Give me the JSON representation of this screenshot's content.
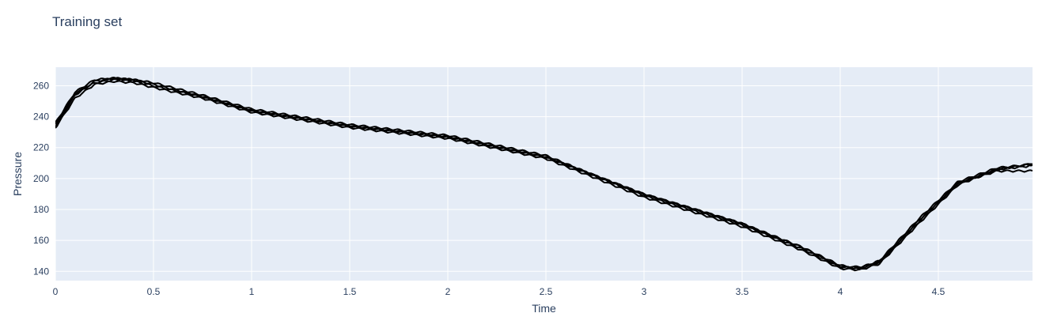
{
  "chart_data": {
    "type": "line",
    "title": "Training set",
    "xlabel": "Time",
    "ylabel": "Pressure",
    "xlim": [
      0,
      4.98
    ],
    "ylim": [
      134,
      272
    ],
    "x_ticks": [
      0,
      0.5,
      1,
      1.5,
      2,
      2.5,
      3,
      3.5,
      4,
      4.5
    ],
    "x_tick_labels": [
      "0",
      "0.5",
      "1",
      "1.5",
      "2",
      "2.5",
      "3",
      "3.5",
      "4",
      "4.5"
    ],
    "y_ticks": [
      140,
      160,
      180,
      200,
      220,
      240,
      260
    ],
    "y_tick_labels": [
      "140",
      "160",
      "180",
      "200",
      "220",
      "240",
      "260"
    ],
    "grid": true,
    "plot_background": "#e5ecf6",
    "line_color": "#000000",
    "series": [
      {
        "x": [
          0,
          0.1,
          0.2,
          0.3,
          0.4,
          0.5,
          0.75,
          1.0,
          1.5,
          2.0,
          2.5,
          3.0,
          3.5,
          3.8,
          4.0,
          4.1,
          4.2,
          4.4,
          4.6,
          4.8,
          4.95,
          4.98
        ],
        "y": [
          234,
          254,
          263,
          265,
          264,
          261,
          253,
          244,
          234,
          227,
          214,
          190,
          171,
          155,
          143,
          142,
          146,
          173,
          197,
          205,
          205,
          205
        ]
      },
      {
        "x": [
          0,
          0.1,
          0.2,
          0.3,
          0.4,
          0.5,
          0.75,
          1.0,
          1.5,
          2.0,
          2.5,
          3.0,
          3.5,
          3.8,
          4.0,
          4.1,
          4.2,
          4.4,
          4.6,
          4.8,
          4.95,
          4.98
        ],
        "y": [
          236,
          256,
          264,
          265,
          264,
          262,
          254,
          245,
          235,
          228,
          215,
          189,
          170,
          156,
          144,
          142,
          147,
          174,
          198,
          207,
          209,
          209
        ]
      },
      {
        "x": [
          0,
          0.1,
          0.2,
          0.3,
          0.4,
          0.5,
          0.75,
          1.0,
          1.5,
          2.0,
          2.5,
          3.0,
          3.5,
          3.8,
          4.0,
          4.1,
          4.2,
          4.4,
          4.6,
          4.8,
          4.95,
          4.98
        ],
        "y": [
          233,
          252,
          261,
          263,
          262,
          259,
          252,
          243,
          233,
          226,
          213,
          188,
          169,
          154,
          142,
          141,
          145,
          171,
          196,
          206,
          208,
          209
        ]
      },
      {
        "x": [
          0,
          0.1,
          0.2,
          0.3,
          0.4,
          0.5,
          0.75,
          1.0,
          1.5,
          2.0,
          2.5,
          3.0,
          3.5,
          3.8,
          4.0,
          4.1,
          4.2,
          4.4,
          4.6,
          4.8,
          4.95,
          4.98
        ],
        "y": [
          235,
          255,
          262,
          264,
          263,
          260,
          253,
          244,
          234,
          227,
          214,
          190,
          171,
          156,
          143,
          143,
          146,
          172,
          197,
          206,
          209,
          210
        ]
      }
    ]
  }
}
